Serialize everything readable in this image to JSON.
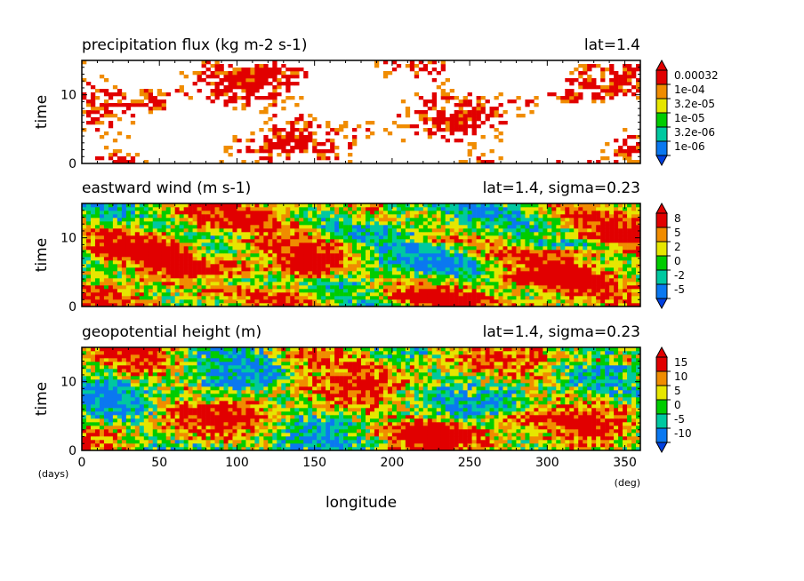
{
  "chart_data": [
    {
      "type": "heatmap",
      "title": "precipitation flux (kg m-2 s-1)",
      "subtitle": "lat=1.4",
      "ylabel": "time",
      "ylim": [
        0,
        15
      ],
      "yticks": [
        "0",
        "10"
      ],
      "xlim": [
        0,
        360
      ],
      "colorbar": {
        "labels": [
          "0.00032",
          "1e-04",
          "3.2e-05",
          "1e-05",
          "3.2e-06",
          "1e-06"
        ],
        "colors": [
          "#e10000",
          "#f08c00",
          "#e6e600",
          "#00cc00",
          "#00c8a0",
          "#0a78f0"
        ]
      },
      "seed": 11,
      "band_base": 0,
      "band_amp": 2.5,
      "noise_weight": 1.4,
      "diag_slope": -0.25,
      "threshold": 1.35
    },
    {
      "type": "heatmap",
      "title": "eastward wind (m s-1)",
      "subtitle": "lat=1.4, sigma=0.23",
      "ylabel": "time",
      "ylim": [
        0,
        15
      ],
      "yticks": [
        "0",
        "10"
      ],
      "xlim": [
        0,
        360
      ],
      "colorbar": {
        "labels": [
          "8",
          "5",
          "2",
          "0",
          "-2",
          "-5"
        ],
        "colors": [
          "#e10000",
          "#f08c00",
          "#e6e600",
          "#00cc00",
          "#00c8a0",
          "#0a78f0"
        ]
      },
      "seed": 23,
      "band_base": 0.3,
      "band_amp": 2.8,
      "noise_weight": 0.9,
      "diag_slope": 0.28,
      "threshold": -99
    },
    {
      "type": "heatmap",
      "title": "geopotential height (m)",
      "subtitle": "lat=1.4, sigma=0.23",
      "ylabel": "time",
      "ylim": [
        0,
        15
      ],
      "yticks": [
        "0",
        "10"
      ],
      "xlim": [
        0,
        360
      ],
      "xticks": [
        "0",
        "50",
        "100",
        "150",
        "200",
        "250",
        "300",
        "350"
      ],
      "xlabel": "longitude",
      "xunit": "(deg)",
      "yunit": "(days)",
      "colorbar": {
        "labels": [
          "15",
          "10",
          "5",
          "0",
          "-5",
          "-10"
        ],
        "colors": [
          "#e10000",
          "#f08c00",
          "#e6e600",
          "#00cc00",
          "#00c8a0",
          "#0a78f0"
        ]
      },
      "seed": 37,
      "band_base": 0.2,
      "band_amp": 3.0,
      "noise_weight": 1.1,
      "diag_slope": -0.12,
      "threshold": -99
    }
  ]
}
